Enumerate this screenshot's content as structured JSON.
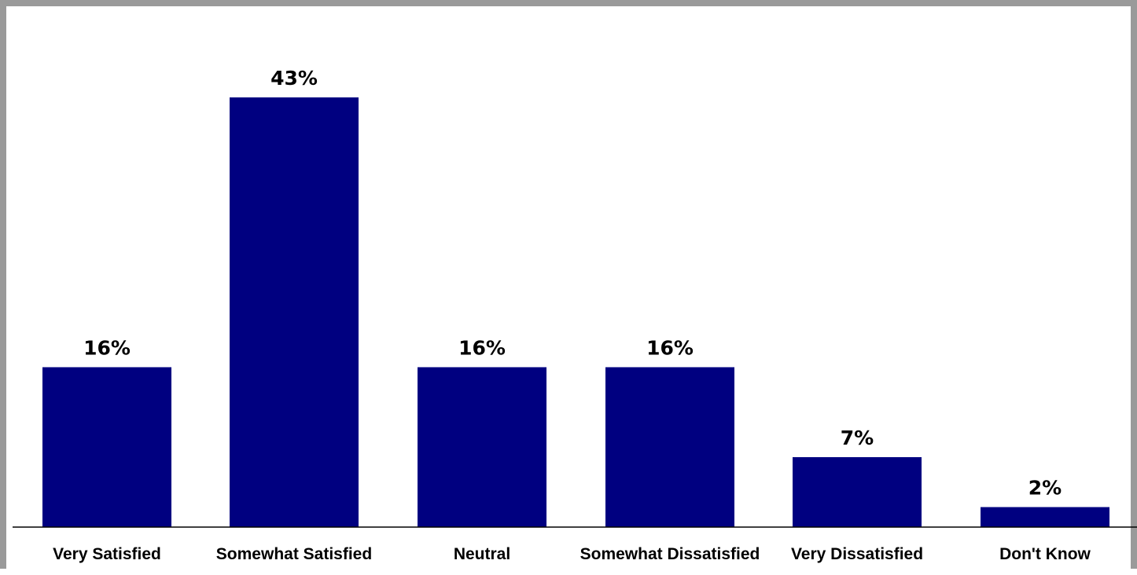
{
  "chart_data": {
    "type": "bar",
    "title": "",
    "xlabel": "",
    "ylabel": "",
    "categories": [
      "Very Satisfied",
      "Somewhat Satisfied",
      "Neutral",
      "Somewhat Dissatisfied",
      "Very Dissatisfied",
      "Don't Know"
    ],
    "values": [
      16,
      43,
      16,
      16,
      7,
      2
    ],
    "data_labels": [
      "16%",
      "43%",
      "16%",
      "16%",
      "7%",
      "2%"
    ],
    "ylim": [
      0,
      43
    ],
    "grid": false,
    "legend": "none",
    "bar_color": "#000080"
  }
}
